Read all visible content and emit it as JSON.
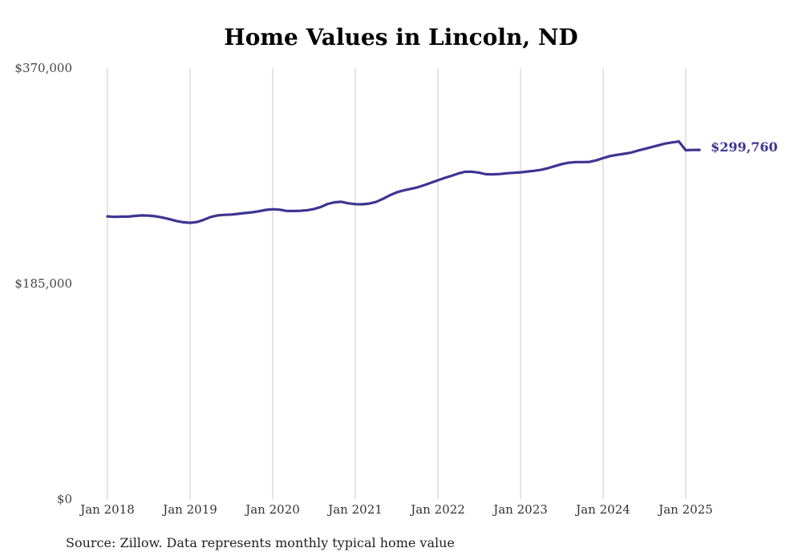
{
  "chart_data": {
    "type": "line",
    "title": "Home Values in Lincoln, ND",
    "xlabel": "",
    "ylabel": "",
    "ylim": [
      0,
      370000
    ],
    "y_ticks": [
      {
        "value": 370000,
        "label": "$370,000"
      },
      {
        "value": 185000,
        "label": "$185,000"
      },
      {
        "value": 0,
        "label": "$0"
      }
    ],
    "x_ticks": [
      "Jan 2018",
      "Jan 2019",
      "Jan 2020",
      "Jan 2021",
      "Jan 2022",
      "Jan 2023",
      "Jan 2024",
      "Jan 2025"
    ],
    "grid": "vertical",
    "line_color": "#3d3591",
    "series": [
      {
        "x": [
          "2018-01",
          "2018-02",
          "2018-03",
          "2018-04",
          "2018-05",
          "2018-06",
          "2018-07",
          "2018-08",
          "2018-09",
          "2018-10",
          "2018-11",
          "2018-12",
          "2019-01",
          "2019-02",
          "2019-03",
          "2019-04",
          "2019-05",
          "2019-06",
          "2019-07",
          "2019-08",
          "2019-09",
          "2019-10",
          "2019-11",
          "2019-12",
          "2020-01",
          "2020-02",
          "2020-03",
          "2020-04",
          "2020-05",
          "2020-06",
          "2020-07",
          "2020-08",
          "2020-09",
          "2020-10",
          "2020-11",
          "2020-12",
          "2021-01",
          "2021-02",
          "2021-03",
          "2021-04",
          "2021-05",
          "2021-06",
          "2021-07",
          "2021-08",
          "2021-09",
          "2021-10",
          "2021-11",
          "2021-12",
          "2022-01",
          "2022-02",
          "2022-03",
          "2022-04",
          "2022-05",
          "2022-06",
          "2022-07",
          "2022-08",
          "2022-09",
          "2022-10",
          "2022-11",
          "2022-12",
          "2023-01",
          "2023-02",
          "2023-03",
          "2023-04",
          "2023-05",
          "2023-06",
          "2023-07",
          "2023-08",
          "2023-09",
          "2023-10",
          "2023-11",
          "2023-12",
          "2024-01",
          "2024-02",
          "2024-03",
          "2024-04",
          "2024-05",
          "2024-06",
          "2024-07",
          "2024-08",
          "2024-09",
          "2024-10",
          "2024-11",
          "2024-12",
          "2025-01",
          "2025-02",
          "2025-03"
        ],
        "values": [
          242700,
          242300,
          242500,
          242500,
          243100,
          243500,
          243400,
          242800,
          241700,
          240300,
          238800,
          237700,
          237200,
          237900,
          239800,
          242200,
          243500,
          244000,
          244300,
          244900,
          245600,
          246200,
          247100,
          248300,
          248800,
          248500,
          247400,
          247300,
          247500,
          248000,
          249000,
          250800,
          253400,
          254800,
          255200,
          253900,
          253200,
          253100,
          253700,
          255100,
          257700,
          260800,
          263300,
          265000,
          266300,
          267600,
          269500,
          271600,
          273700,
          275800,
          277600,
          279600,
          281100,
          281000,
          280200,
          278900,
          278800,
          279100,
          279700,
          280100,
          280500,
          281200,
          281800,
          282700,
          284100,
          285900,
          287600,
          288800,
          289300,
          289300,
          289500,
          290800,
          292700,
          294500,
          295500,
          296400,
          297400,
          299100,
          300600,
          302100,
          303700,
          305200,
          306200,
          307000,
          299500,
          299700,
          299760
        ]
      }
    ],
    "end_label": "$299,760",
    "source": "Source: Zillow. Data represents monthly typical home value"
  }
}
